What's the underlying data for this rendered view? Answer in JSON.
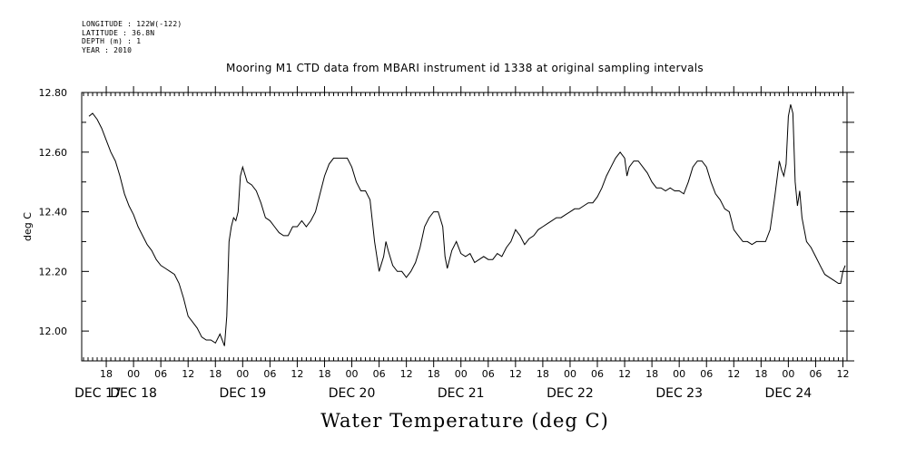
{
  "header": {
    "longitude": "LONGITUDE : 122W(-122)",
    "latitude": "LATITUDE : 36.8N",
    "depth": "DEPTH (m) : 1",
    "year": "YEAR : 2010"
  },
  "chart_data": {
    "type": "line",
    "title": "Mooring M1 CTD data from MBARI instrument id 1338 at original sampling intervals",
    "xlabel": "Water Temperature (deg C)",
    "ylabel": "deg C",
    "ylim": [
      11.9,
      12.8
    ],
    "xlim_hours_from_dec17_00": [
      14,
      176
    ],
    "yticks": [
      12.0,
      12.2,
      12.4,
      12.6,
      12.8
    ],
    "ytick_labels": [
      "12.00",
      "12.20",
      "12.40",
      "12.60",
      "12.80"
    ],
    "xtick_hour_labels": [
      "18",
      "00",
      "06",
      "12",
      "18",
      "00",
      "06",
      "12",
      "18",
      "00",
      "06",
      "12",
      "18",
      "00",
      "06",
      "12",
      "18",
      "00",
      "06",
      "12",
      "18",
      "00",
      "06",
      "12",
      "18",
      "00",
      "06",
      "12"
    ],
    "day_labels": [
      "DEC 17",
      "DEC 18",
      "DEC 19",
      "DEC 20",
      "DEC 21",
      "DEC 22",
      "DEC 23",
      "DEC 24"
    ],
    "series": [
      {
        "values": [
          [
            14.2,
            12.72
          ],
          [
            15,
            12.73
          ],
          [
            16,
            12.71
          ],
          [
            17,
            12.68
          ],
          [
            18,
            12.64
          ],
          [
            19,
            12.6
          ],
          [
            20,
            12.57
          ],
          [
            21,
            12.52
          ],
          [
            22,
            12.46
          ],
          [
            23,
            12.42
          ],
          [
            24,
            12.39
          ],
          [
            25,
            12.35
          ],
          [
            26,
            12.32
          ],
          [
            27,
            12.29
          ],
          [
            28,
            12.27
          ],
          [
            29,
            12.24
          ],
          [
            30,
            12.22
          ],
          [
            31,
            12.21
          ],
          [
            32,
            12.2
          ],
          [
            33,
            12.19
          ],
          [
            34,
            12.16
          ],
          [
            35,
            12.11
          ],
          [
            36,
            12.05
          ],
          [
            37,
            12.03
          ],
          [
            38,
            12.01
          ],
          [
            39,
            11.98
          ],
          [
            40,
            11.97
          ],
          [
            41,
            11.97
          ],
          [
            42,
            11.96
          ],
          [
            43,
            11.99
          ],
          [
            44,
            11.95
          ],
          [
            44.5,
            12.05
          ],
          [
            45,
            12.3
          ],
          [
            45.5,
            12.35
          ],
          [
            46,
            12.38
          ],
          [
            46.5,
            12.37
          ],
          [
            47,
            12.4
          ],
          [
            47.5,
            12.52
          ],
          [
            48,
            12.55
          ],
          [
            49,
            12.5
          ],
          [
            50,
            12.49
          ],
          [
            51,
            12.47
          ],
          [
            52,
            12.43
          ],
          [
            53,
            12.38
          ],
          [
            54,
            12.37
          ],
          [
            55,
            12.35
          ],
          [
            56,
            12.33
          ],
          [
            57,
            12.32
          ],
          [
            58,
            12.32
          ],
          [
            59,
            12.35
          ],
          [
            60,
            12.35
          ],
          [
            61,
            12.37
          ],
          [
            62,
            12.35
          ],
          [
            63,
            12.37
          ],
          [
            64,
            12.4
          ],
          [
            65,
            12.46
          ],
          [
            66,
            12.52
          ],
          [
            67,
            12.56
          ],
          [
            68,
            12.58
          ],
          [
            70,
            12.58
          ],
          [
            71,
            12.58
          ],
          [
            72,
            12.55
          ],
          [
            73,
            12.5
          ],
          [
            74,
            12.47
          ],
          [
            75,
            12.47
          ],
          [
            76,
            12.44
          ],
          [
            77,
            12.3
          ],
          [
            78,
            12.2
          ],
          [
            79,
            12.25
          ],
          [
            79.5,
            12.3
          ],
          [
            80,
            12.27
          ],
          [
            81,
            12.22
          ],
          [
            82,
            12.2
          ],
          [
            83,
            12.2
          ],
          [
            84,
            12.18
          ],
          [
            85,
            12.2
          ],
          [
            86,
            12.23
          ],
          [
            87,
            12.28
          ],
          [
            88,
            12.35
          ],
          [
            89,
            12.38
          ],
          [
            90,
            12.4
          ],
          [
            91,
            12.4
          ],
          [
            92,
            12.35
          ],
          [
            92.5,
            12.25
          ],
          [
            93,
            12.21
          ],
          [
            94,
            12.27
          ],
          [
            95,
            12.3
          ],
          [
            96,
            12.26
          ],
          [
            97,
            12.25
          ],
          [
            98,
            12.26
          ],
          [
            99,
            12.23
          ],
          [
            100,
            12.24
          ],
          [
            101,
            12.25
          ],
          [
            102,
            12.24
          ],
          [
            103,
            12.24
          ],
          [
            104,
            12.26
          ],
          [
            105,
            12.25
          ],
          [
            106,
            12.28
          ],
          [
            107,
            12.3
          ],
          [
            108,
            12.34
          ],
          [
            109,
            12.32
          ],
          [
            110,
            12.29
          ],
          [
            111,
            12.31
          ],
          [
            112,
            12.32
          ],
          [
            113,
            12.34
          ],
          [
            114,
            12.35
          ],
          [
            115,
            12.36
          ],
          [
            116,
            12.37
          ],
          [
            117,
            12.38
          ],
          [
            118,
            12.38
          ],
          [
            119,
            12.39
          ],
          [
            120,
            12.4
          ],
          [
            121,
            12.41
          ],
          [
            122,
            12.41
          ],
          [
            123,
            12.42
          ],
          [
            124,
            12.43
          ],
          [
            125,
            12.43
          ],
          [
            126,
            12.45
          ],
          [
            127,
            12.48
          ],
          [
            128,
            12.52
          ],
          [
            129,
            12.55
          ],
          [
            130,
            12.58
          ],
          [
            131,
            12.6
          ],
          [
            132,
            12.58
          ],
          [
            132.5,
            12.52
          ],
          [
            133,
            12.55
          ],
          [
            134,
            12.57
          ],
          [
            135,
            12.57
          ],
          [
            136,
            12.55
          ],
          [
            137,
            12.53
          ],
          [
            138,
            12.5
          ],
          [
            139,
            12.48
          ],
          [
            140,
            12.48
          ],
          [
            141,
            12.47
          ],
          [
            142,
            12.48
          ],
          [
            143,
            12.47
          ],
          [
            144,
            12.47
          ],
          [
            145,
            12.46
          ],
          [
            146,
            12.5
          ],
          [
            147,
            12.55
          ],
          [
            148,
            12.57
          ],
          [
            149,
            12.57
          ],
          [
            150,
            12.55
          ],
          [
            151,
            12.5
          ],
          [
            152,
            12.46
          ],
          [
            153,
            12.44
          ],
          [
            154,
            12.41
          ],
          [
            155,
            12.4
          ],
          [
            156,
            12.34
          ],
          [
            157,
            12.32
          ],
          [
            158,
            12.3
          ],
          [
            159,
            12.3
          ],
          [
            160,
            12.29
          ],
          [
            161,
            12.3
          ],
          [
            162,
            12.3
          ],
          [
            163,
            12.3
          ],
          [
            164,
            12.34
          ],
          [
            165,
            12.45
          ],
          [
            166,
            12.57
          ],
          [
            166.5,
            12.54
          ],
          [
            167,
            12.52
          ],
          [
            167.5,
            12.56
          ],
          [
            168,
            12.72
          ],
          [
            168.5,
            12.76
          ],
          [
            169,
            12.73
          ],
          [
            169.5,
            12.5
          ],
          [
            170,
            12.42
          ],
          [
            170.5,
            12.47
          ],
          [
            171,
            12.38
          ],
          [
            172,
            12.3
          ],
          [
            173,
            12.28
          ],
          [
            174,
            12.25
          ],
          [
            175,
            12.22
          ],
          [
            176,
            12.19
          ],
          [
            177,
            12.18
          ],
          [
            178,
            12.17
          ],
          [
            179,
            12.16
          ],
          [
            179.5,
            12.16
          ],
          [
            180,
            12.2
          ],
          [
            180.5,
            12.22
          ]
        ]
      }
    ]
  }
}
